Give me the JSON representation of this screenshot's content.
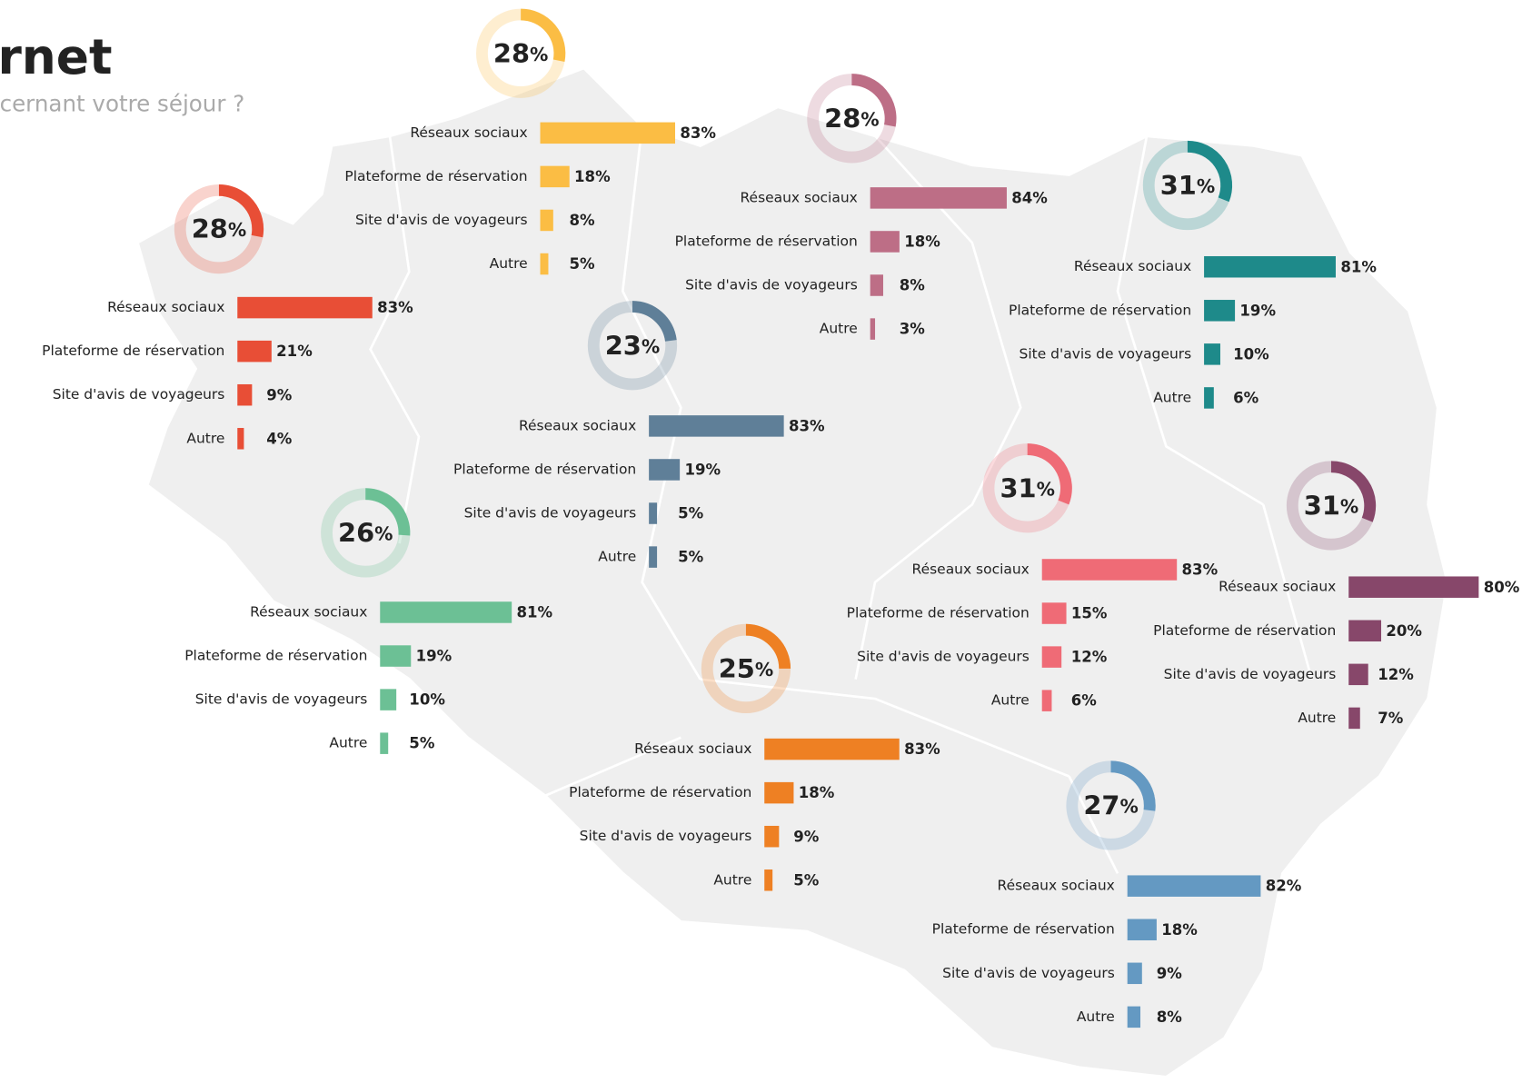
{
  "header": {
    "title": "rnet",
    "subtitle": "cernant votre séjour ?"
  },
  "chart_data": [
    {
      "type": "bar",
      "color": "#fbbd44",
      "xlim": [
        0,
        100
      ],
      "categories": [
        "Réseaux sociaux",
        "Plateforme de réservation",
        "Site d'avis de voyageurs",
        "Autre"
      ],
      "values": [
        83,
        18,
        8,
        5
      ],
      "value_labels": [
        "83%",
        "18%",
        "8%",
        "5%"
      ],
      "donut": {
        "value": 28,
        "unit": "%"
      }
    },
    {
      "type": "bar",
      "color": "#bd6e86",
      "xlim": [
        0,
        100
      ],
      "categories": [
        "Réseaux sociaux",
        "Plateforme de réservation",
        "Site d'avis de voyageurs",
        "Autre"
      ],
      "values": [
        84,
        18,
        8,
        3
      ],
      "value_labels": [
        "84%",
        "18%",
        "8%",
        "3%"
      ],
      "donut": {
        "value": 28,
        "unit": "%"
      }
    },
    {
      "type": "bar",
      "color": "#1e8a8a",
      "xlim": [
        0,
        100
      ],
      "categories": [
        "Réseaux sociaux",
        "Plateforme de réservation",
        "Site d'avis de voyageurs",
        "Autre"
      ],
      "values": [
        81,
        19,
        10,
        6
      ],
      "value_labels": [
        "81%",
        "19%",
        "10%",
        "6%"
      ],
      "donut": {
        "value": 31,
        "unit": "%"
      }
    },
    {
      "type": "bar",
      "color": "#e84e36",
      "xlim": [
        0,
        100
      ],
      "categories": [
        "Réseaux sociaux",
        "Plateforme de réservation",
        "Site d'avis de voyageurs",
        "Autre"
      ],
      "values": [
        83,
        21,
        9,
        4
      ],
      "value_labels": [
        "83%",
        "21%",
        "9%",
        "4%"
      ],
      "donut": {
        "value": 28,
        "unit": "%"
      }
    },
    {
      "type": "bar",
      "color": "#5f7f98",
      "xlim": [
        0,
        100
      ],
      "categories": [
        "Réseaux sociaux",
        "Plateforme de réservation",
        "Site d'avis de voyageurs",
        "Autre"
      ],
      "values": [
        83,
        19,
        5,
        5
      ],
      "value_labels": [
        "83%",
        "19%",
        "5%",
        "5%"
      ],
      "donut": {
        "value": 23,
        "unit": "%"
      }
    },
    {
      "type": "bar",
      "color": "#6cc095",
      "xlim": [
        0,
        100
      ],
      "categories": [
        "Réseaux sociaux",
        "Plateforme de réservation",
        "Site d'avis de voyageurs",
        "Autre"
      ],
      "values": [
        81,
        19,
        10,
        5
      ],
      "value_labels": [
        "81%",
        "19%",
        "10%",
        "5%"
      ],
      "donut": {
        "value": 26,
        "unit": "%"
      }
    },
    {
      "type": "bar",
      "color": "#ef6b76",
      "xlim": [
        0,
        100
      ],
      "categories": [
        "Réseaux sociaux",
        "Plateforme de réservation",
        "Site d'avis de voyageurs",
        "Autre"
      ],
      "values": [
        83,
        15,
        12,
        6
      ],
      "value_labels": [
        "83%",
        "15%",
        "12%",
        "6%"
      ],
      "donut": {
        "value": 31,
        "unit": "%"
      }
    },
    {
      "type": "bar",
      "color": "#87476a",
      "xlim": [
        0,
        100
      ],
      "categories": [
        "Réseaux sociaux",
        "Plateforme de réservation",
        "Site d'avis de voyageurs",
        "Autre"
      ],
      "values": [
        80,
        20,
        12,
        7
      ],
      "value_labels": [
        "80%",
        "20%",
        "12%",
        "7%"
      ],
      "donut": {
        "value": 31,
        "unit": "%"
      }
    },
    {
      "type": "bar",
      "color": "#ee8023",
      "xlim": [
        0,
        100
      ],
      "categories": [
        "Réseaux sociaux",
        "Plateforme de réservation",
        "Site d'avis de voyageurs",
        "Autre"
      ],
      "values": [
        83,
        18,
        9,
        5
      ],
      "value_labels": [
        "83%",
        "18%",
        "9%",
        "5%"
      ],
      "donut": {
        "value": 25,
        "unit": "%"
      }
    },
    {
      "type": "bar",
      "color": "#6499c2",
      "xlim": [
        0,
        100
      ],
      "categories": [
        "Réseaux sociaux",
        "Plateforme de réservation",
        "Site d'avis de voyageurs",
        "Autre"
      ],
      "values": [
        82,
        18,
        9,
        8
      ],
      "value_labels": [
        "82%",
        "18%",
        "9%",
        "8%"
      ],
      "donut": {
        "value": 27,
        "unit": "%"
      }
    }
  ]
}
